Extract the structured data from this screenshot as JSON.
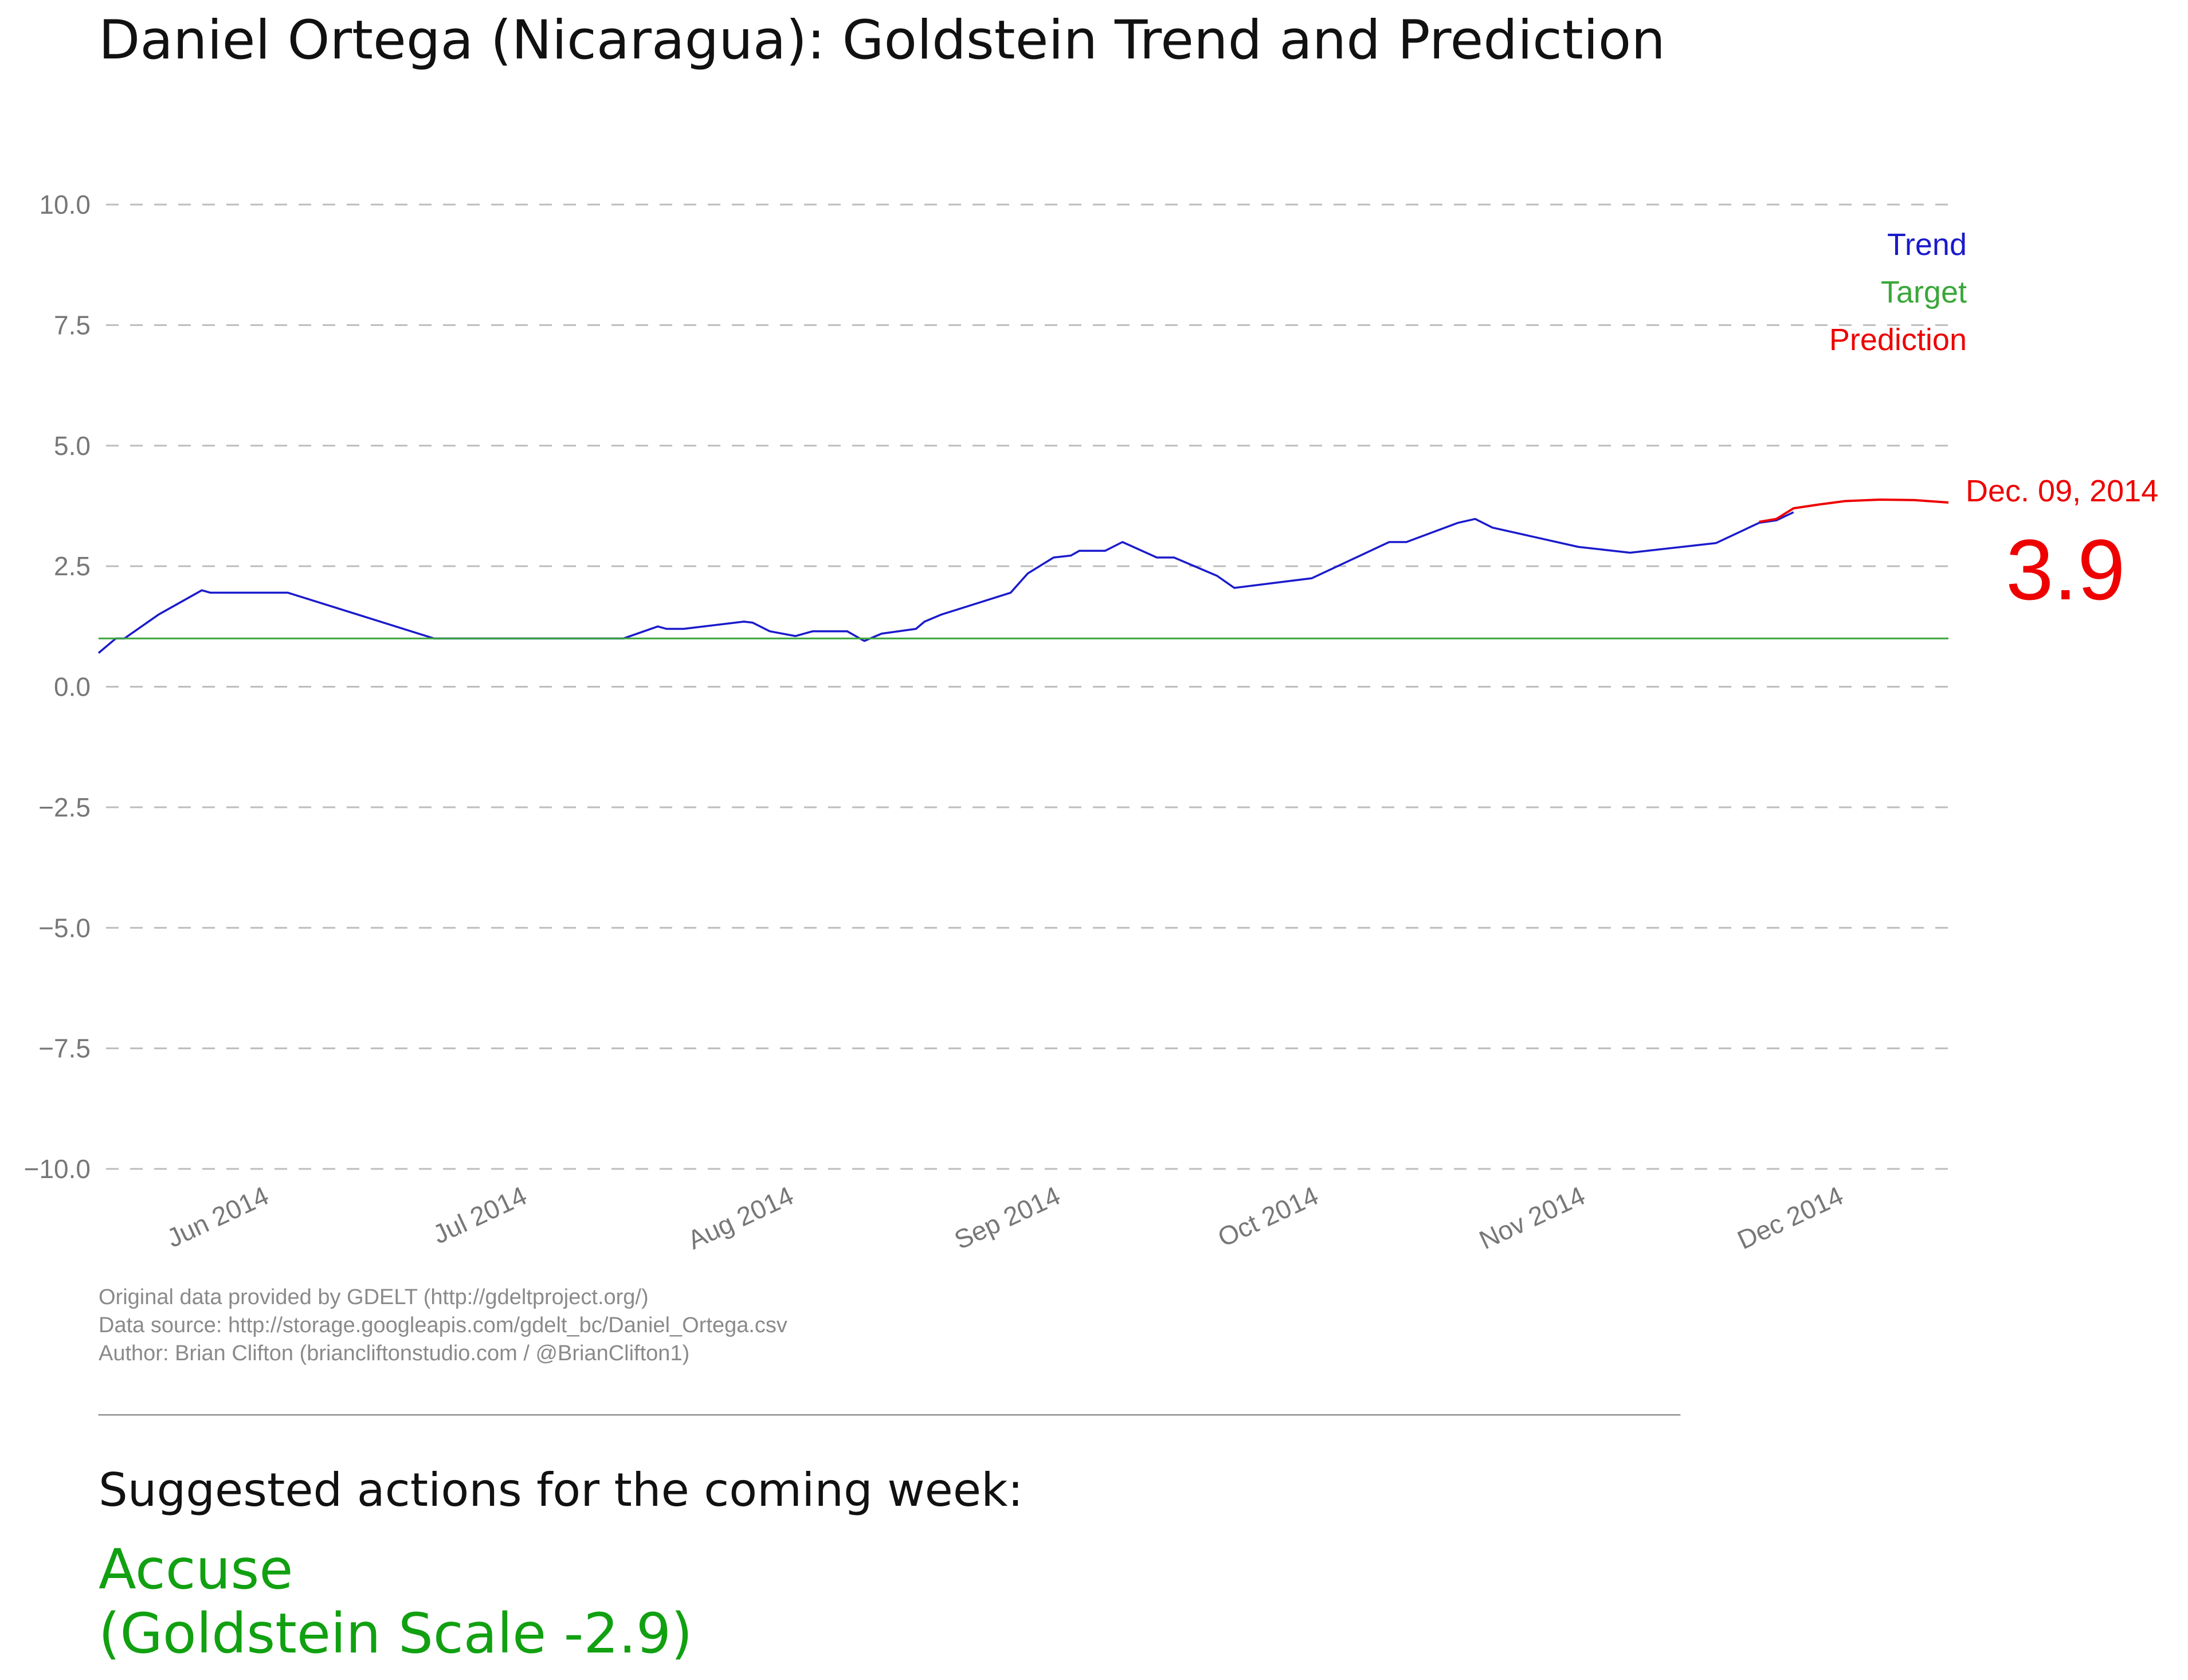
{
  "chart_data": {
    "type": "line",
    "title": "Daniel Ortega (Nicaragua): Goldstein Trend and Prediction",
    "ylim": [
      -10.0,
      10.0
    ],
    "y_ticks": [
      -10.0,
      -7.5,
      -5.0,
      -2.5,
      0.0,
      2.5,
      5.0,
      7.5,
      10.0
    ],
    "y_tick_labels": [
      "−10.0",
      "−7.5",
      "−5.0",
      "−2.5",
      "0.0",
      "2.5",
      "5.0",
      "7.5",
      "10.0"
    ],
    "x_range": [
      "2014-05-12",
      "2014-12-14"
    ],
    "x_ticks": [
      {
        "date": "2014-06-01",
        "label": "Jun 2014"
      },
      {
        "date": "2014-07-01",
        "label": "Jul 2014"
      },
      {
        "date": "2014-08-01",
        "label": "Aug 2014"
      },
      {
        "date": "2014-09-01",
        "label": "Sep 2014"
      },
      {
        "date": "2014-10-01",
        "label": "Oct 2014"
      },
      {
        "date": "2014-11-01",
        "label": "Nov 2014"
      },
      {
        "date": "2014-12-01",
        "label": "Dec 2014"
      }
    ],
    "grid": "horizontal dashed",
    "legend_position": "top-right",
    "series": [
      {
        "name": "Trend",
        "color": "#1a1acc",
        "points": [
          {
            "x": "2014-05-12",
            "y": 0.7
          },
          {
            "x": "2014-05-14",
            "y": 1.0
          },
          {
            "x": "2014-05-15",
            "y": 1.0
          },
          {
            "x": "2014-05-19",
            "y": 1.5
          },
          {
            "x": "2014-05-24",
            "y": 2.0
          },
          {
            "x": "2014-05-25",
            "y": 1.95
          },
          {
            "x": "2014-06-03",
            "y": 1.95
          },
          {
            "x": "2014-06-20",
            "y": 1.0
          },
          {
            "x": "2014-07-12",
            "y": 1.0
          },
          {
            "x": "2014-07-16",
            "y": 1.25
          },
          {
            "x": "2014-07-17",
            "y": 1.2
          },
          {
            "x": "2014-07-19",
            "y": 1.2
          },
          {
            "x": "2014-07-26",
            "y": 1.35
          },
          {
            "x": "2014-07-27",
            "y": 1.33
          },
          {
            "x": "2014-07-29",
            "y": 1.15
          },
          {
            "x": "2014-08-01",
            "y": 1.05
          },
          {
            "x": "2014-08-03",
            "y": 1.15
          },
          {
            "x": "2014-08-07",
            "y": 1.15
          },
          {
            "x": "2014-08-09",
            "y": 0.95
          },
          {
            "x": "2014-08-11",
            "y": 1.1
          },
          {
            "x": "2014-08-15",
            "y": 1.2
          },
          {
            "x": "2014-08-16",
            "y": 1.35
          },
          {
            "x": "2014-08-18",
            "y": 1.5
          },
          {
            "x": "2014-08-26",
            "y": 1.95
          },
          {
            "x": "2014-08-28",
            "y": 2.35
          },
          {
            "x": "2014-08-31",
            "y": 2.68
          },
          {
            "x": "2014-09-02",
            "y": 2.72
          },
          {
            "x": "2014-09-03",
            "y": 2.82
          },
          {
            "x": "2014-09-06",
            "y": 2.82
          },
          {
            "x": "2014-09-08",
            "y": 3.0
          },
          {
            "x": "2014-09-12",
            "y": 2.68
          },
          {
            "x": "2014-09-14",
            "y": 2.68
          },
          {
            "x": "2014-09-19",
            "y": 2.3
          },
          {
            "x": "2014-09-21",
            "y": 2.05
          },
          {
            "x": "2014-09-30",
            "y": 2.25
          },
          {
            "x": "2014-10-09",
            "y": 3.0
          },
          {
            "x": "2014-10-11",
            "y": 3.0
          },
          {
            "x": "2014-10-17",
            "y": 3.4
          },
          {
            "x": "2014-10-19",
            "y": 3.48
          },
          {
            "x": "2014-10-21",
            "y": 3.3
          },
          {
            "x": "2014-10-31",
            "y": 2.9
          },
          {
            "x": "2014-11-06",
            "y": 2.78
          },
          {
            "x": "2014-11-16",
            "y": 2.98
          },
          {
            "x": "2014-11-21",
            "y": 3.4
          },
          {
            "x": "2014-11-23",
            "y": 3.45
          },
          {
            "x": "2014-11-25",
            "y": 3.62
          }
        ]
      },
      {
        "name": "Target",
        "color": "#3aa63a",
        "points": [
          {
            "x": "2014-05-12",
            "y": 1.0
          },
          {
            "x": "2014-12-13",
            "y": 1.0
          }
        ]
      },
      {
        "name": "Prediction",
        "color": "#ee0000",
        "points": [
          {
            "x": "2014-11-21",
            "y": 3.42
          },
          {
            "x": "2014-11-23",
            "y": 3.48
          },
          {
            "x": "2014-11-25",
            "y": 3.7
          },
          {
            "x": "2014-11-28",
            "y": 3.78
          },
          {
            "x": "2014-12-01",
            "y": 3.85
          },
          {
            "x": "2014-12-05",
            "y": 3.88
          },
          {
            "x": "2014-12-09",
            "y": 3.87
          },
          {
            "x": "2014-12-13",
            "y": 3.82
          }
        ]
      }
    ],
    "annotation": {
      "date_label": "Dec. 09, 2014",
      "value_label": "3.9",
      "color": "#ee0000"
    }
  },
  "footer": {
    "lines": [
      "Original data provided by GDELT (http://gdeltproject.org/)",
      "Data source: http://storage.googleapis.com/gdelt_bc/Daniel_Ortega.csv",
      "Author: Brian Clifton (briancliftonstudio.com / @BrianClifton1)"
    ],
    "separator": "______________________________________________________________________________________________________________________________________________________"
  },
  "actions": {
    "heading": "Suggested actions for the coming week:",
    "items": [
      "Accuse",
      "(Goldstein Scale -2.9)"
    ],
    "color": "#11a011"
  }
}
